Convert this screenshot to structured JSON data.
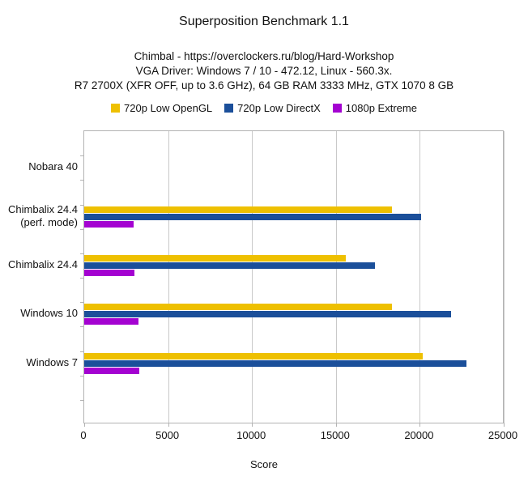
{
  "title": "Superposition Benchmark 1.1",
  "subtitle_lines": [
    "Chimbal - https://overclockers.ru/blog/Hard-Workshop",
    "VGA Driver: Windows 7 / 10 - 472.12, Linux - 560.3x.",
    "R7 2700X (XFR OFF, up to 3.6 GHz), 64 GB RAM 3333 MHz, GTX 1070 8 GB"
  ],
  "legend": [
    {
      "label": "720p Low OpenGL",
      "color": "#EEC001"
    },
    {
      "label": "720p Low DirectX",
      "color": "#1B4F9A"
    },
    {
      "label": "1080p Extreme",
      "color": "#A402D1"
    }
  ],
  "colors": {
    "grid": "#c9c9c9",
    "axis": "#b3b3b3",
    "text": "#111111"
  },
  "chart_data": {
    "type": "bar",
    "orientation": "horizontal",
    "title": "Superposition Benchmark 1.1",
    "xlabel": "Score",
    "ylabel": "",
    "xlim": [
      0,
      25000
    ],
    "xticks": [
      0,
      5000,
      10000,
      15000,
      20000,
      25000
    ],
    "grid": true,
    "legend_position": "top",
    "categories": [
      "Nobara 40",
      "Chimbalix 24.4\n(perf. mode)",
      "Chimbalix 24.4",
      "Windows 10",
      "Windows 7"
    ],
    "series": [
      {
        "name": "720p Low OpenGL",
        "color": "#EEC001",
        "values": [
          0,
          18350,
          15600,
          18350,
          20150
        ]
      },
      {
        "name": "720p Low DirectX",
        "color": "#1B4F9A",
        "values": [
          0,
          20100,
          17350,
          21850,
          22800
        ]
      },
      {
        "name": "1080p Extreme",
        "color": "#A402D1",
        "values": [
          0,
          2950,
          3000,
          3250,
          3300
        ]
      }
    ]
  }
}
